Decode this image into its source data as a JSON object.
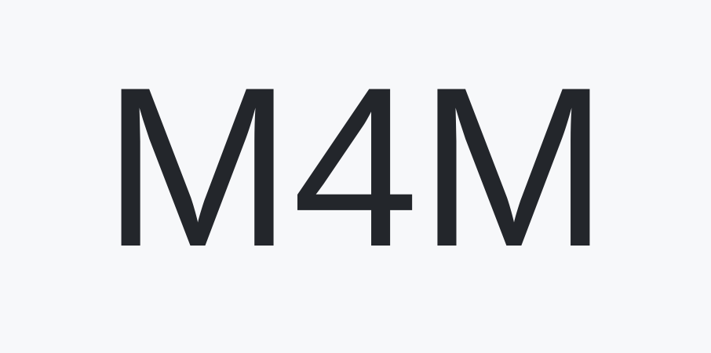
{
  "logo": {
    "text": "M4M"
  },
  "colors": {
    "background": "#f7f8fa",
    "text": "#23262b"
  }
}
